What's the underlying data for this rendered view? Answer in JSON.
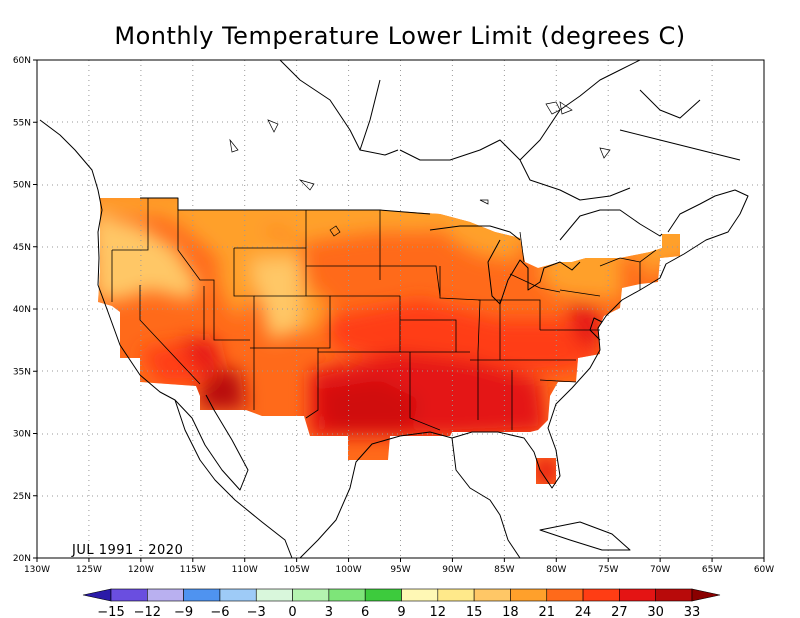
{
  "title": "Monthly Temperature Lower Limit (degrees C)",
  "period_label": "JUL 1991 - 2020",
  "map": {
    "lon_ticks": [
      "130W",
      "125W",
      "120W",
      "115W",
      "110W",
      "105W",
      "100W",
      "95W",
      "90W",
      "85W",
      "80W",
      "75W",
      "70W",
      "65W",
      "60W"
    ],
    "lat_ticks": [
      "20N",
      "25N",
      "30N",
      "35N",
      "40N",
      "45N",
      "50N",
      "55N",
      "60N"
    ]
  },
  "colorbar": {
    "labels": [
      "-15",
      "-12",
      "-9",
      "-6",
      "-3",
      "0",
      "3",
      "6",
      "9",
      "12",
      "15",
      "18",
      "21",
      "24",
      "27",
      "30",
      "33"
    ],
    "colors": [
      "#2a1aa8",
      "#6a4ee0",
      "#b9b0f0",
      "#4f93f0",
      "#9ecbf7",
      "#d9f7dc",
      "#b4f3b0",
      "#7ee579",
      "#3dcb3d",
      "#fff8b5",
      "#ffe98a",
      "#ffc766",
      "#ffa02b",
      "#ff6a1a",
      "#ff3d14",
      "#e41414",
      "#b80a0a",
      "#8a0000"
    ]
  }
}
